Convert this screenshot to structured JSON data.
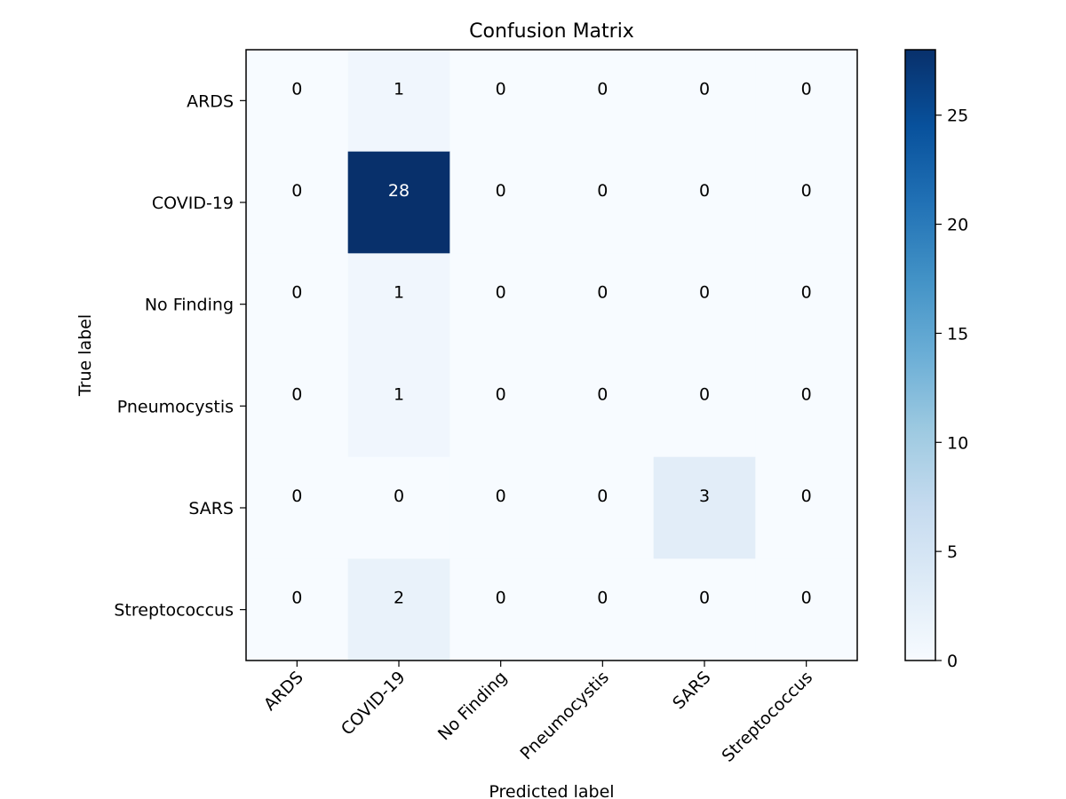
{
  "chart_data": {
    "type": "heatmap",
    "title": "Confusion Matrix",
    "xlabel": "Predicted label",
    "ylabel": "True label",
    "x_categories": [
      "ARDS",
      "COVID-19",
      "No Finding",
      "Pneumocystis",
      "SARS",
      "Streptococcus"
    ],
    "y_categories": [
      "ARDS",
      "COVID-19",
      "No Finding",
      "Pneumocystis",
      "SARS",
      "Streptococcus"
    ],
    "values": [
      [
        0,
        1,
        0,
        0,
        0,
        0
      ],
      [
        0,
        28,
        0,
        0,
        0,
        0
      ],
      [
        0,
        1,
        0,
        0,
        0,
        0
      ],
      [
        0,
        1,
        0,
        0,
        0,
        0
      ],
      [
        0,
        0,
        0,
        0,
        3,
        0
      ],
      [
        0,
        2,
        0,
        0,
        0,
        0
      ]
    ],
    "colorscale": "Blues",
    "color_range": [
      0,
      28
    ],
    "colorbar_ticks": [
      "0",
      "5",
      "10",
      "15",
      "20",
      "25"
    ],
    "x_tick_rotation": "45 degrees",
    "grid": false,
    "colorbar_position": "right"
  }
}
